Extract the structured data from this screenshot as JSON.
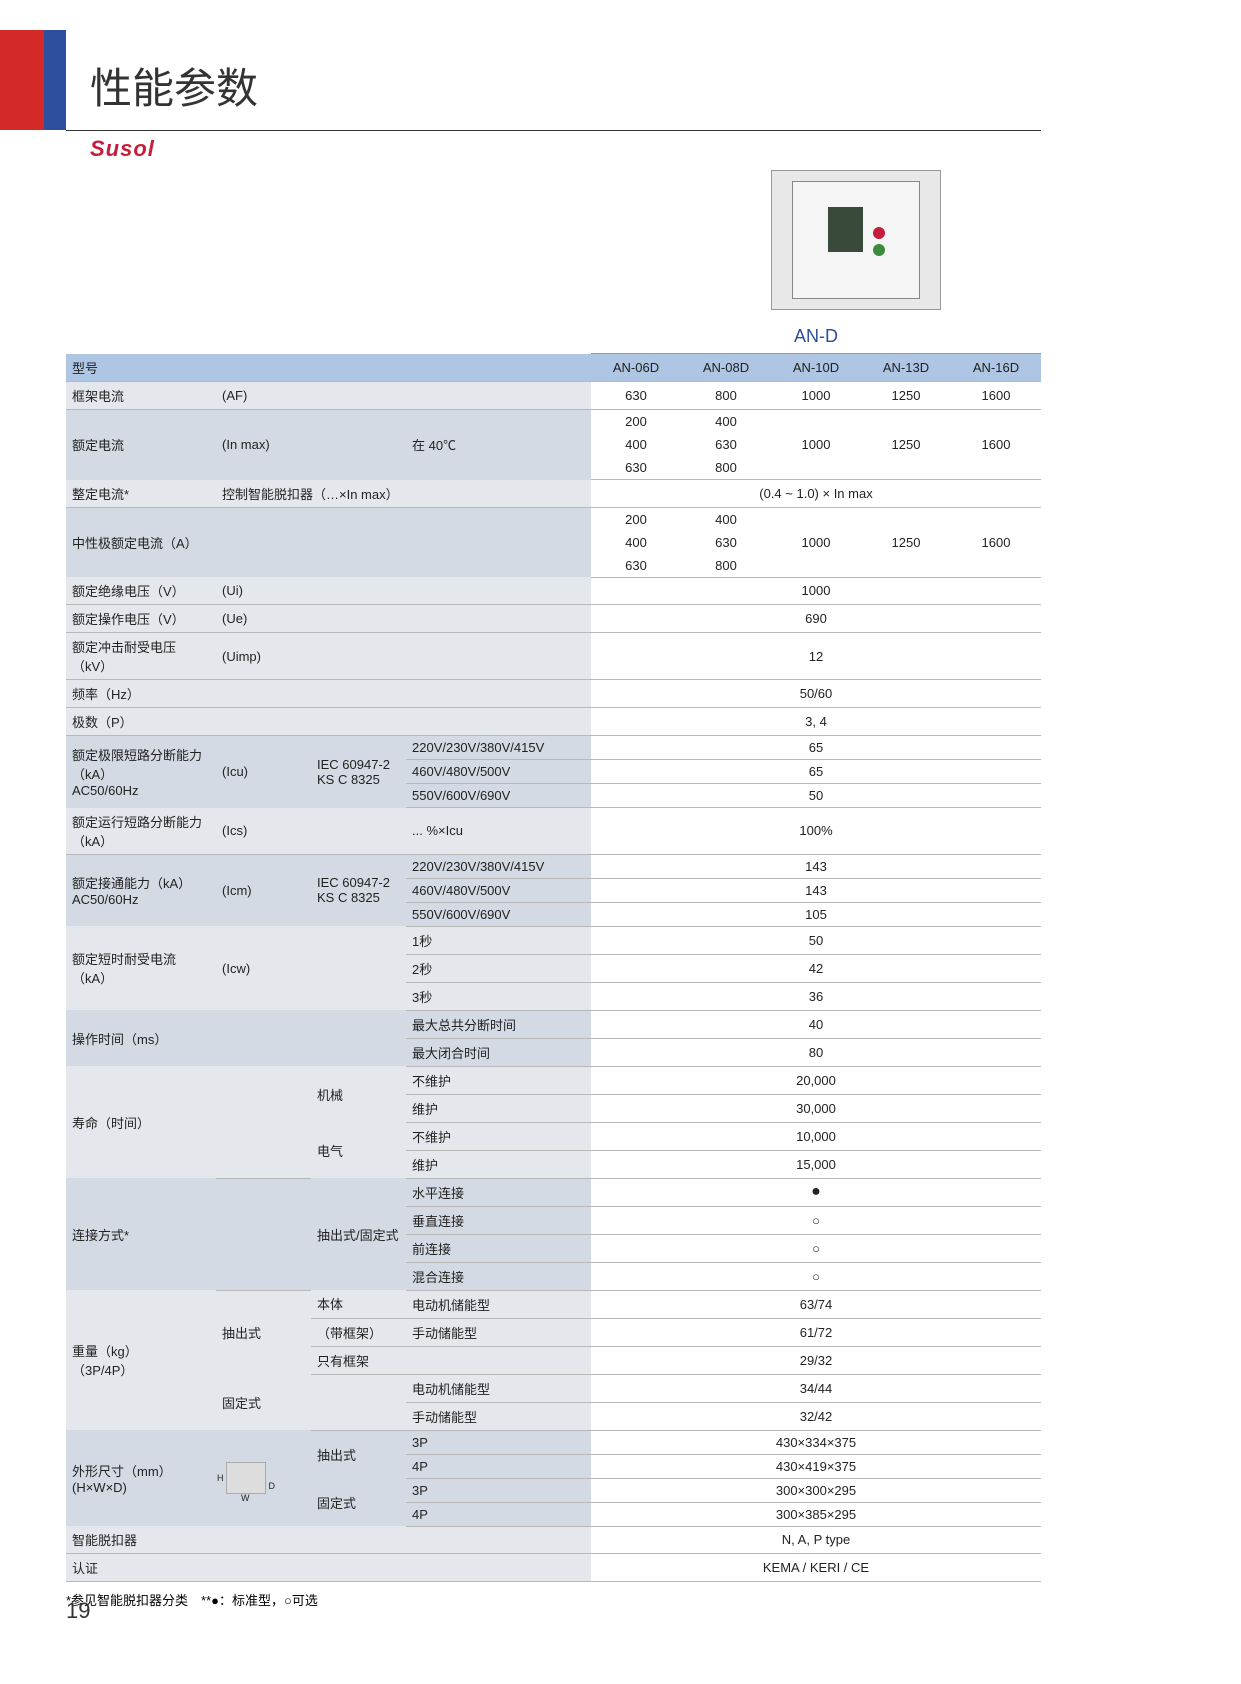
{
  "page": {
    "title": "性能参数",
    "brand": "Susol",
    "page_number": "19",
    "footnote": "*参见智能脱扣器分类　**●：标准型，○可选"
  },
  "series": {
    "name": "AN-D",
    "models": [
      "AN-06D",
      "AN-08D",
      "AN-10D",
      "AN-13D",
      "AN-16D"
    ]
  },
  "rows": {
    "model_label": "型号",
    "frame_current": {
      "label": "框架电流",
      "unit": "(AF)",
      "values": [
        "630",
        "800",
        "1000",
        "1250",
        "1600"
      ]
    },
    "rated_current": {
      "label": "额定电流",
      "unit": "(In max)",
      "cond": "在 40℃",
      "r1": [
        "200",
        "400",
        "",
        "",
        ""
      ],
      "r2": [
        "400",
        "630",
        "1000",
        "1250",
        "1600"
      ],
      "r3": [
        "630",
        "800",
        "",
        "",
        ""
      ]
    },
    "adjust": {
      "label": "整定电流*",
      "desc": "控制智能脱扣器（…×In max）",
      "value": "(0.4 ~ 1.0) × In max"
    },
    "neutral": {
      "label": "中性极额定电流（A）",
      "r1": [
        "200",
        "400",
        "",
        "",
        ""
      ],
      "r2": [
        "400",
        "630",
        "1000",
        "1250",
        "1600"
      ],
      "r3": [
        "630",
        "800",
        "",
        "",
        ""
      ]
    },
    "ui": {
      "label": "额定绝缘电压（V）",
      "unit": "(Ui)",
      "value": "1000"
    },
    "ue": {
      "label": "额定操作电压（V）",
      "unit": "(Ue)",
      "value": "690"
    },
    "uimp": {
      "label": "额定冲击耐受电压（kV）",
      "unit": "(Uimp)",
      "value": "12"
    },
    "freq": {
      "label": "频率（Hz）",
      "value": "50/60"
    },
    "poles": {
      "label": "极数（P）",
      "value": "3, 4"
    },
    "icu": {
      "label": "额定极限短路分断能力（kA）",
      "sub": "AC50/60Hz",
      "std_unit": "(Icu)",
      "std1": "IEC 60947-2",
      "std2": "KS C 8325",
      "v1": "220V/230V/380V/415V",
      "val1": "65",
      "v2": "460V/480V/500V",
      "val2": "65",
      "v3": "550V/600V/690V",
      "val3": "50"
    },
    "ics": {
      "label": "额定运行短路分断能力（kA）",
      "unit": "(Ics)",
      "cond": "... %×Icu",
      "value": "100%"
    },
    "icm": {
      "label": "额定接通能力（kA）",
      "sub": "AC50/60Hz",
      "std_unit": "(Icm)",
      "std1": "IEC 60947-2",
      "std2": "KS C 8325",
      "v1": "220V/230V/380V/415V",
      "val1": "143",
      "v2": "460V/480V/500V",
      "val2": "143",
      "v3": "550V/600V/690V",
      "val3": "105"
    },
    "icw": {
      "label": "额定短时耐受电流（kA）",
      "unit": "(Icw)",
      "t1": "1秒",
      "v1": "50",
      "t2": "2秒",
      "v2": "42",
      "t3": "3秒",
      "v3": "36"
    },
    "optime": {
      "label": "操作时间（ms）",
      "l1": "最大总共分断时间",
      "v1": "40",
      "l2": "最大闭合时间",
      "v2": "80"
    },
    "life": {
      "label": "寿命（时间）",
      "mech": "机械",
      "mech_nomaint": "不维护",
      "mech_nomaint_v": "20,000",
      "mech_maint": "维护",
      "mech_maint_v": "30,000",
      "elec": "电气",
      "elec_nomaint": "不维护",
      "elec_nomaint_v": "10,000",
      "elec_maint": "维护",
      "elec_maint_v": "15,000"
    },
    "conn": {
      "label": "连接方式*",
      "mode": "抽出式/固定式",
      "h": "水平连接",
      "hv": "●",
      "v": "垂直连接",
      "vv": "○",
      "f": "前连接",
      "fv": "○",
      "m": "混合连接",
      "mv": "○"
    },
    "weight": {
      "label": "重量（kg）",
      "sub": "（3P/4P）",
      "draw": "抽出式",
      "fixed": "固定式",
      "body": "本体",
      "body_motor": "电动机储能型",
      "body_motor_v": "63/74",
      "frame": "（带框架）",
      "frame_manual": "手动储能型",
      "frame_manual_v": "61/72",
      "only": "只有框架",
      "only_v": "29/32",
      "fixed_motor": "电动机储能型",
      "fixed_motor_v": "34/44",
      "fixed_manual": "手动储能型",
      "fixed_manual_v": "32/42"
    },
    "dims": {
      "label": "外形尺寸（mm）",
      "sub": "(H×W×D)",
      "draw": "抽出式",
      "fixed": "固定式",
      "d3p": "3P",
      "d4p": "4P",
      "draw3p": "430×334×375",
      "draw4p": "430×419×375",
      "fix3p": "300×300×295",
      "fix4p": "300×385×295"
    },
    "trip": {
      "label": "智能脱扣器",
      "value": "N, A, P type"
    },
    "cert": {
      "label": "认证",
      "value": "KEMA / KERI / CE"
    }
  }
}
